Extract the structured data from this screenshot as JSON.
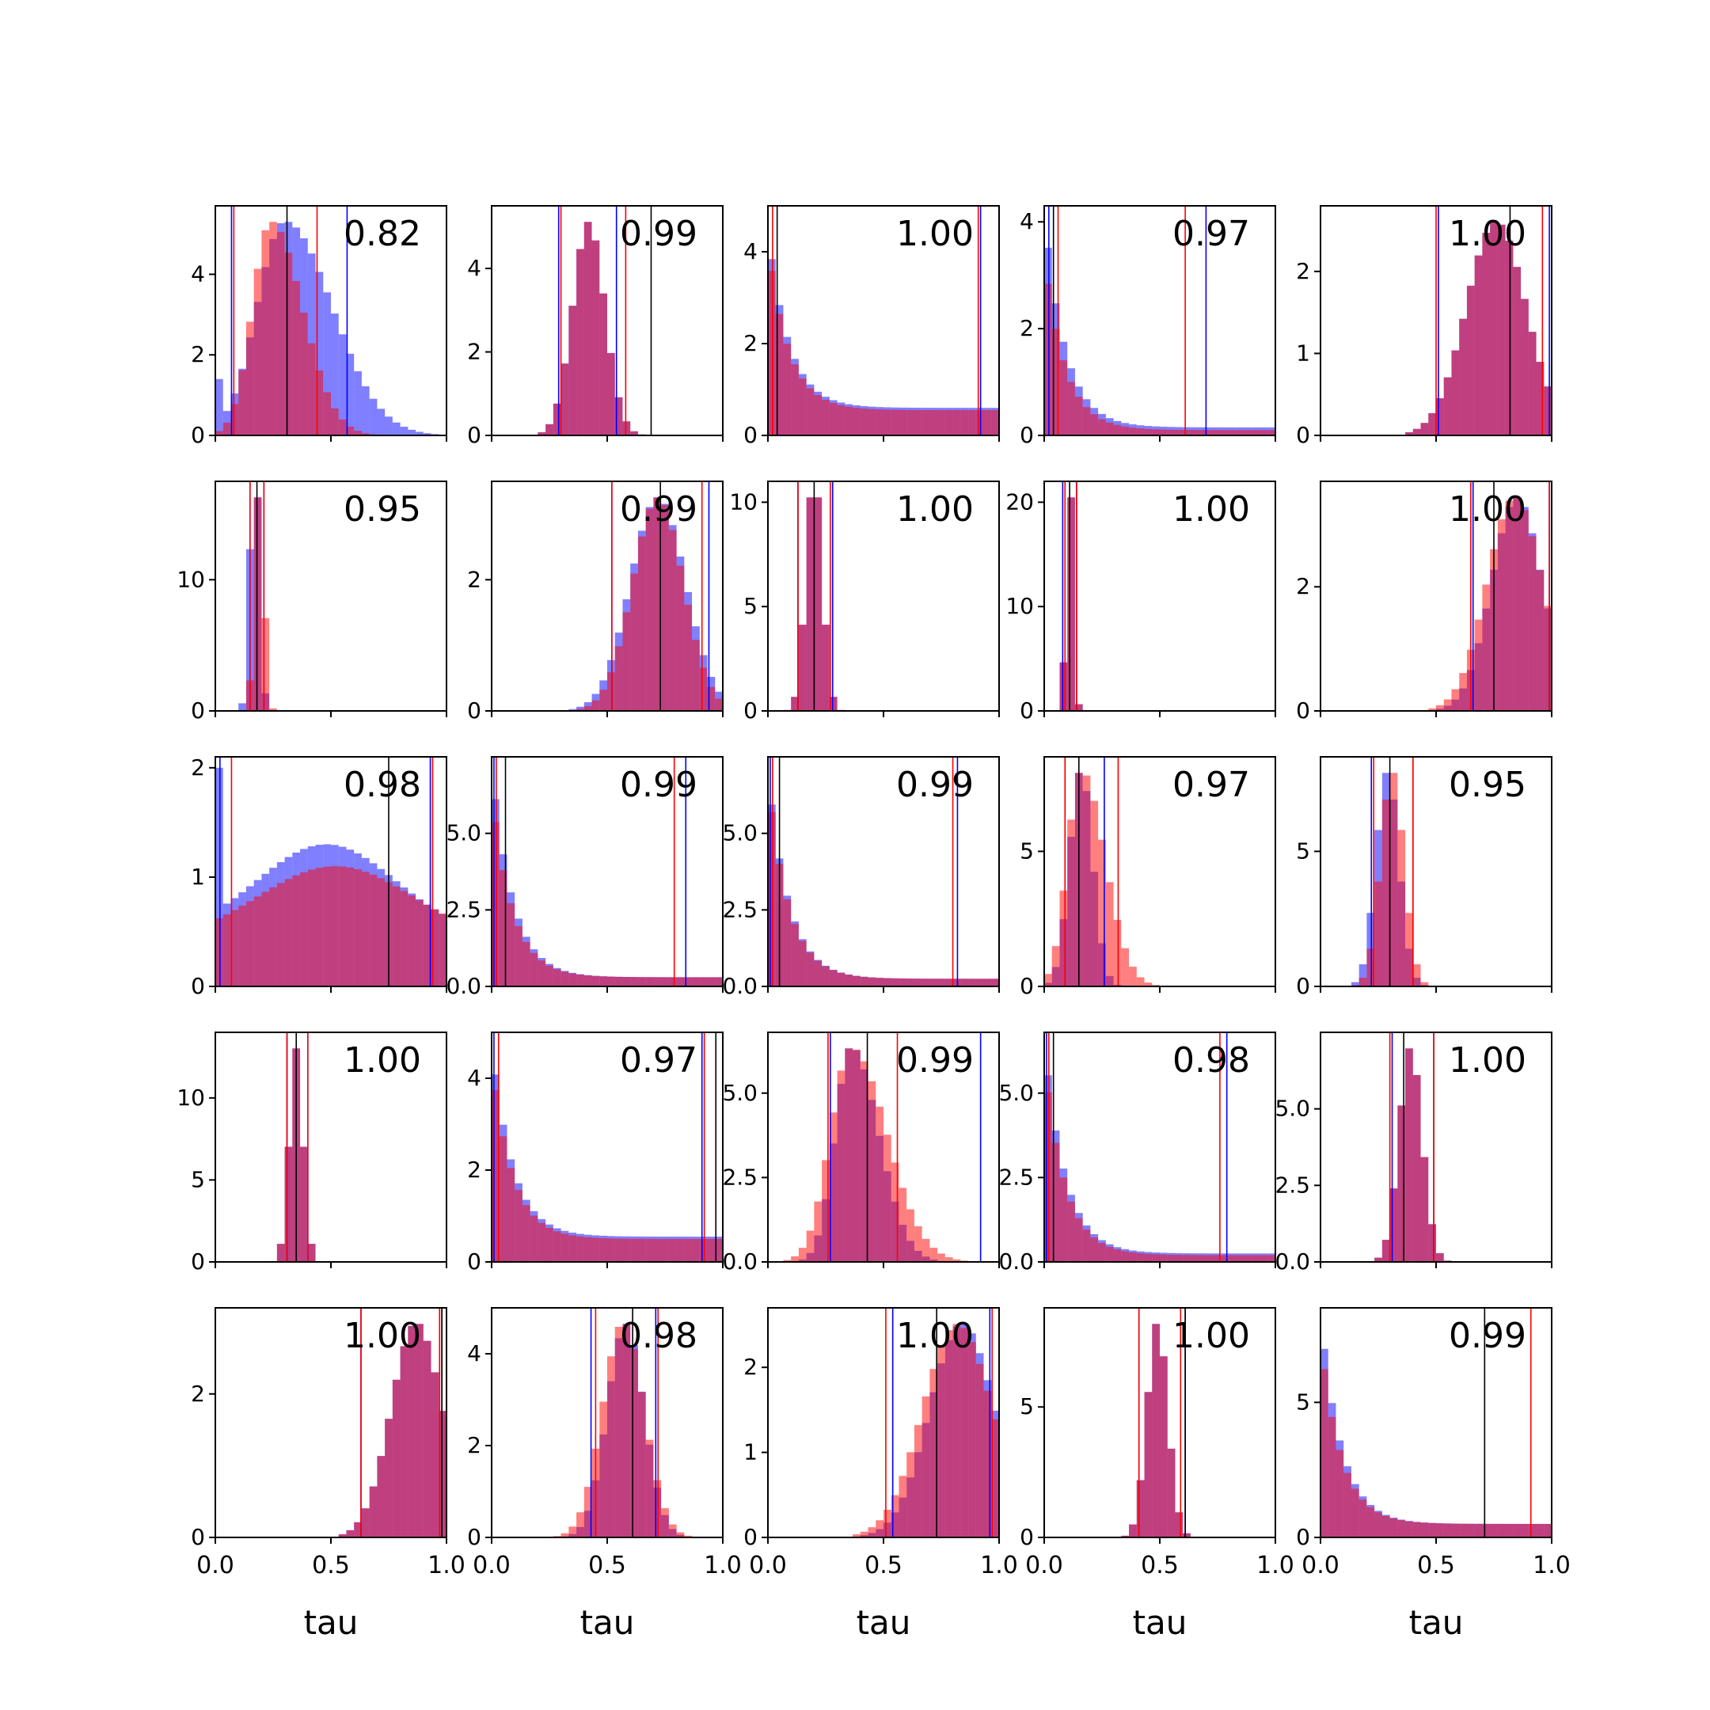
{
  "colors": {
    "blue": "#0000ff",
    "red": "#ff0000",
    "black": "#000000",
    "frame": "#000000"
  },
  "chart_data": {
    "type": "histogram-grid",
    "rows": 5,
    "cols": 5,
    "xlim": [
      0,
      1
    ],
    "x_ticks": [
      0.0,
      0.5,
      1.0
    ],
    "x_tick_labels": [
      "0.0",
      "0.5",
      "1.0"
    ],
    "xlabel": "tau",
    "series_colors": [
      "blue",
      "red"
    ],
    "panels": [
      {
        "annotation": "0.82",
        "ymax": 5.7,
        "yticks": [
          0,
          2,
          4
        ],
        "ytick_labels": [
          "0",
          "2",
          "4"
        ],
        "blue": {
          "mean": 0.3,
          "sd": 0.12,
          "skew": "right",
          "spike0": 1.4
        },
        "red": {
          "mean": 0.24,
          "sd": 0.08,
          "skew": "right"
        },
        "vlines": {
          "blue": [
            0.07,
            0.57
          ],
          "red": [
            0.08,
            0.44
          ],
          "black": [
            0.31
          ]
        }
      },
      {
        "annotation": "0.99",
        "ymax": 5.5,
        "yticks": [
          0,
          2,
          4
        ],
        "ytick_labels": [
          "0",
          "2",
          "4"
        ],
        "blue": {
          "mean": 0.42,
          "sd": 0.07
        },
        "red": {
          "mean": 0.42,
          "sd": 0.07
        },
        "vlines": {
          "blue": [
            0.29,
            0.54
          ],
          "red": [
            0.3,
            0.58
          ],
          "black": [
            0.69
          ]
        }
      },
      {
        "annotation": "1.00",
        "ymax": 5.0,
        "yticks": [
          0,
          2,
          4
        ],
        "ytick_labels": [
          "0",
          "2",
          "4"
        ],
        "blue": {
          "shape": "decay",
          "peak": 4.5,
          "floor": 0.6
        },
        "red": {
          "shape": "decay",
          "peak": 4.2,
          "floor": 0.55
        },
        "vlines": {
          "blue": [
            0.0,
            0.92
          ],
          "red": [
            0.02,
            0.91
          ],
          "black": [
            0.04
          ]
        }
      },
      {
        "annotation": "0.97",
        "ymax": 4.3,
        "yticks": [
          0,
          2,
          4
        ],
        "ytick_labels": [
          "0",
          "2",
          "4"
        ],
        "blue": {
          "shape": "decay",
          "peak": 4.2,
          "floor": 0.15
        },
        "red": {
          "shape": "decay",
          "peak": 3.4,
          "floor": 0.1
        },
        "vlines": {
          "blue": [
            0.02,
            0.7
          ],
          "red": [
            0.06,
            0.61
          ],
          "black": [
            0.04
          ]
        }
      },
      {
        "annotation": "1.00",
        "ymax": 2.8,
        "yticks": [
          0,
          1,
          2
        ],
        "ytick_labels": [
          "0",
          "1",
          "2"
        ],
        "blue": {
          "mean": 0.76,
          "sd": 0.13
        },
        "red": {
          "mean": 0.76,
          "sd": 0.13
        },
        "vlines": {
          "blue": [
            0.51,
            0.99
          ],
          "red": [
            0.5,
            0.96
          ],
          "black": [
            0.82
          ]
        }
      },
      {
        "annotation": "0.95",
        "ymax": 17.5,
        "yticks": [
          0,
          10
        ],
        "ytick_labels": [
          "0",
          "10"
        ],
        "blue": {
          "mean": 0.17,
          "sd": 0.02
        },
        "red": {
          "mean": 0.19,
          "sd": 0.02
        },
        "vlines": {
          "blue": [
            0.15,
            0.21
          ],
          "red": [
            0.15,
            0.21
          ],
          "black": [
            0.18
          ]
        }
      },
      {
        "annotation": "0.99",
        "ymax": 3.5,
        "yticks": [
          0,
          2
        ],
        "ytick_labels": [
          "0",
          "2"
        ],
        "blue": {
          "mean": 0.72,
          "sd": 0.12
        },
        "red": {
          "mean": 0.72,
          "sd": 0.11
        },
        "vlines": {
          "blue": [
            0.52,
            0.94
          ],
          "red": [
            0.52,
            0.91
          ],
          "black": [
            0.73
          ]
        }
      },
      {
        "annotation": "1.00",
        "ymax": 11.0,
        "yticks": [
          0,
          5,
          10
        ],
        "ytick_labels": [
          "0",
          "5",
          "10"
        ],
        "blue": {
          "mean": 0.2,
          "sd": 0.035
        },
        "red": {
          "mean": 0.2,
          "sd": 0.035
        },
        "vlines": {
          "blue": [
            0.13,
            0.28
          ],
          "red": [
            0.13,
            0.27
          ],
          "black": [
            0.2
          ]
        }
      },
      {
        "annotation": "1.00",
        "ymax": 22.0,
        "yticks": [
          0,
          10,
          20
        ],
        "ytick_labels": [
          "0",
          "10",
          "20"
        ],
        "blue": {
          "mean": 0.11,
          "sd": 0.015
        },
        "red": {
          "mean": 0.11,
          "sd": 0.015
        },
        "vlines": {
          "blue": [
            0.08,
            0.14
          ],
          "red": [
            0.09,
            0.14
          ],
          "black": [
            0.11
          ]
        }
      },
      {
        "annotation": "1.00",
        "ymax": 3.7,
        "yticks": [
          0,
          2
        ],
        "ytick_labels": [
          "0",
          "2"
        ],
        "blue": {
          "mean": 0.85,
          "sd": 0.11
        },
        "red": {
          "mean": 0.84,
          "sd": 0.12
        },
        "vlines": {
          "blue": [
            0.66,
            0.99
          ],
          "red": [
            0.65,
            0.99
          ],
          "black": [
            0.75
          ]
        }
      },
      {
        "annotation": "0.98",
        "ymax": 2.1,
        "yticks": [
          0,
          1,
          2
        ],
        "ytick_labels": [
          "0",
          "1",
          "2"
        ],
        "blue": {
          "shape": "broad",
          "mean": 0.48,
          "sd": 0.3,
          "peak": 1.3,
          "spike0": 2.0
        },
        "red": {
          "shape": "broad",
          "mean": 0.52,
          "sd": 0.34,
          "peak": 1.1
        },
        "vlines": {
          "blue": [
            0.02,
            0.93
          ],
          "red": [
            0.07,
            0.94
          ],
          "black": [
            0.75
          ]
        }
      },
      {
        "annotation": "0.99",
        "ymax": 7.5,
        "yticks": [
          0.0,
          2.5,
          5.0
        ],
        "ytick_labels": [
          "0.0",
          "2.5",
          "5.0"
        ],
        "blue": {
          "shape": "decay",
          "peak": 7.3,
          "floor": 0.3
        },
        "red": {
          "shape": "decay",
          "peak": 6.4,
          "floor": 0.3
        },
        "vlines": {
          "blue": [
            0.01,
            0.84
          ],
          "red": [
            0.02,
            0.79
          ],
          "black": [
            0.06
          ]
        }
      },
      {
        "annotation": "0.99",
        "ymax": 7.5,
        "yticks": [
          0.0,
          2.5,
          5.0
        ],
        "ytick_labels": [
          "0.0",
          "2.5",
          "5.0"
        ],
        "blue": {
          "shape": "decay",
          "peak": 7.1,
          "floor": 0.25
        },
        "red": {
          "shape": "decay",
          "peak": 6.8,
          "floor": 0.25
        },
        "vlines": {
          "blue": [
            0.01,
            0.82
          ],
          "red": [
            0.02,
            0.8
          ],
          "black": [
            0.05
          ]
        }
      },
      {
        "annotation": "0.97",
        "ymax": 8.5,
        "yticks": [
          0,
          5
        ],
        "ytick_labels": [
          "0",
          "5"
        ],
        "blue": {
          "mean": 0.16,
          "sd": 0.05
        },
        "red": {
          "mean": 0.16,
          "sd": 0.06,
          "skew": "right"
        },
        "vlines": {
          "blue": [
            0.09,
            0.26
          ],
          "red": [
            0.09,
            0.32
          ],
          "black": [
            0.15
          ]
        }
      },
      {
        "annotation": "0.95",
        "ymax": 8.5,
        "yticks": [
          0,
          5
        ],
        "ytick_labels": [
          "0",
          "5"
        ],
        "blue": {
          "mean": 0.29,
          "sd": 0.05
        },
        "red": {
          "mean": 0.31,
          "sd": 0.05
        },
        "vlines": {
          "blue": [
            0.22,
            0.4
          ],
          "red": [
            0.23,
            0.4
          ],
          "black": [
            0.3
          ]
        }
      },
      {
        "annotation": "1.00",
        "ymax": 14.0,
        "yticks": [
          0,
          5,
          10
        ],
        "ytick_labels": [
          "0",
          "5",
          "10"
        ],
        "blue": {
          "mean": 0.35,
          "sd": 0.03
        },
        "red": {
          "mean": 0.35,
          "sd": 0.03
        },
        "vlines": {
          "blue": [
            0.31,
            0.4
          ],
          "red": [
            0.31,
            0.4
          ],
          "black": [
            0.35
          ]
        }
      },
      {
        "annotation": "0.97",
        "ymax": 5.0,
        "yticks": [
          0,
          2,
          4
        ],
        "ytick_labels": [
          "0",
          "2",
          "4"
        ],
        "blue": {
          "shape": "decay",
          "peak": 4.8,
          "floor": 0.55
        },
        "red": {
          "shape": "decay",
          "peak": 4.4,
          "floor": 0.5
        },
        "vlines": {
          "blue": [
            0.01,
            0.91
          ],
          "red": [
            0.03,
            0.92
          ],
          "black": [
            0.97
          ]
        }
      },
      {
        "annotation": "0.99",
        "ymax": 6.8,
        "yticks": [
          0.0,
          2.5,
          5.0
        ],
        "ytick_labels": [
          "0.0",
          "2.5",
          "5.0"
        ],
        "blue": {
          "mean": 0.36,
          "sd": 0.07,
          "skew": "right"
        },
        "red": {
          "mean": 0.36,
          "sd": 0.09,
          "skew": "right"
        },
        "vlines": {
          "blue": [
            0.27,
            0.92
          ],
          "red": [
            0.26,
            0.56
          ],
          "black": [
            0.43
          ]
        }
      },
      {
        "annotation": "0.98",
        "ymax": 6.8,
        "yticks": [
          0.0,
          2.5,
          5.0
        ],
        "ytick_labels": [
          "0.0",
          "2.5",
          "5.0"
        ],
        "blue": {
          "shape": "decay",
          "peak": 6.6,
          "floor": 0.25
        },
        "red": {
          "shape": "decay",
          "peak": 6.0,
          "floor": 0.2
        },
        "vlines": {
          "blue": [
            0.01,
            0.79
          ],
          "red": [
            0.02,
            0.76
          ],
          "black": [
            0.04
          ]
        }
      },
      {
        "annotation": "1.00",
        "ymax": 7.5,
        "yticks": [
          0.0,
          2.5,
          5.0
        ],
        "ytick_labels": [
          "0.0",
          "2.5",
          "5.0"
        ],
        "blue": {
          "mean": 0.39,
          "sd": 0.05
        },
        "red": {
          "mean": 0.39,
          "sd": 0.05
        },
        "vlines": {
          "blue": [
            0.31,
            0.49
          ],
          "red": [
            0.3,
            0.49
          ],
          "black": [
            0.36
          ]
        }
      },
      {
        "annotation": "1.00",
        "ymax": 3.2,
        "yticks": [
          0,
          2
        ],
        "ytick_labels": [
          "0",
          "2"
        ],
        "blue": {
          "mean": 0.87,
          "sd": 0.11
        },
        "red": {
          "mean": 0.87,
          "sd": 0.11
        },
        "vlines": {
          "blue": [
            0.63,
            0.98
          ],
          "red": [
            0.63,
            0.97
          ],
          "black": [
            0.98
          ]
        }
      },
      {
        "annotation": "0.98",
        "ymax": 5.0,
        "yticks": [
          0,
          2,
          4
        ],
        "ytick_labels": [
          "0",
          "2",
          "4"
        ],
        "blue": {
          "mean": 0.58,
          "sd": 0.08
        },
        "red": {
          "mean": 0.57,
          "sd": 0.09
        },
        "vlines": {
          "blue": [
            0.43,
            0.71
          ],
          "red": [
            0.45,
            0.72
          ],
          "black": [
            0.61
          ]
        }
      },
      {
        "annotation": "1.00",
        "ymax": 2.7,
        "yticks": [
          0,
          1,
          2
        ],
        "ytick_labels": [
          "0",
          "1",
          "2"
        ],
        "blue": {
          "mean": 0.84,
          "sd": 0.14
        },
        "red": {
          "mean": 0.82,
          "sd": 0.15
        },
        "vlines": {
          "blue": [
            0.54,
            0.96
          ],
          "red": [
            0.51,
            0.97
          ],
          "black": [
            0.73
          ]
        }
      },
      {
        "annotation": "1.00",
        "ymax": 8.8,
        "yticks": [
          0,
          5
        ],
        "ytick_labels": [
          "0",
          "5"
        ],
        "blue": {
          "mean": 0.49,
          "sd": 0.045
        },
        "red": {
          "mean": 0.49,
          "sd": 0.045
        },
        "vlines": {
          "blue": [
            0.41,
            0.61
          ],
          "red": [
            0.41,
            0.59
          ],
          "black": [
            0.61
          ]
        }
      },
      {
        "annotation": "0.99",
        "ymax": 8.5,
        "yticks": [
          0,
          5
        ],
        "ytick_labels": [
          "0",
          "5"
        ],
        "blue": {
          "shape": "decay",
          "peak": 8.3,
          "floor": 0.5
        },
        "red": {
          "shape": "decay",
          "peak": 7.4,
          "floor": 0.5
        },
        "vlines": {
          "blue": [],
          "red": [
            0.91
          ],
          "black": [
            0.71
          ]
        }
      }
    ]
  }
}
